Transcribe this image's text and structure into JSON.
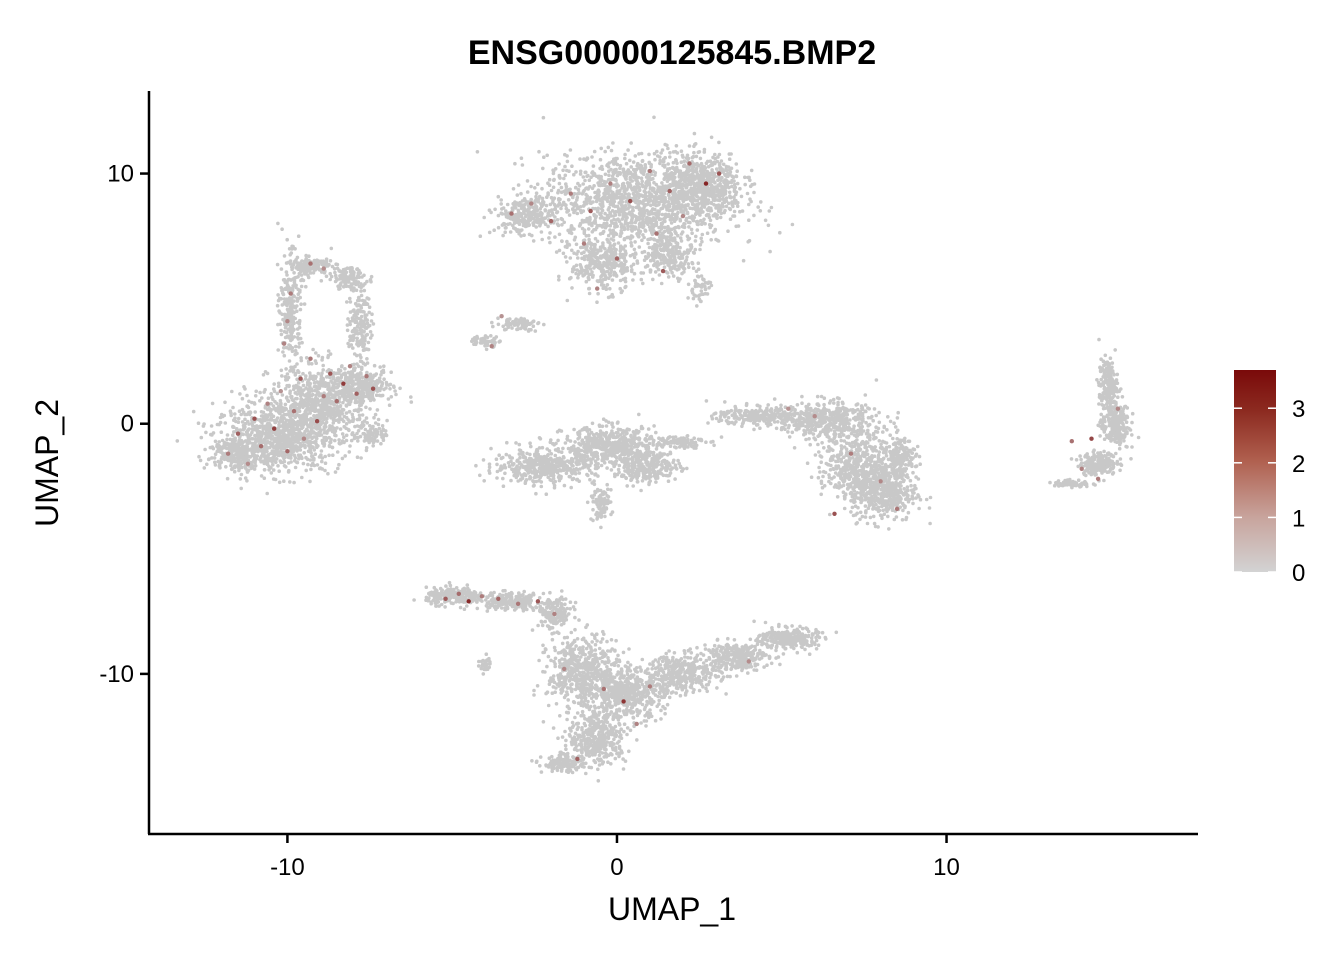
{
  "chart_data": {
    "type": "scatter",
    "title": "ENSG00000125845.BMP2",
    "xlabel": "UMAP_1",
    "ylabel": "UMAP_2",
    "xlim": [
      -14.2,
      17.6
    ],
    "ylim": [
      -16.4,
      13.3
    ],
    "x_ticks": [
      -10,
      0,
      10
    ],
    "y_ticks": [
      -10,
      0,
      10
    ],
    "x_tick_labels": [
      "-10",
      "0",
      "10"
    ],
    "y_tick_labels": [
      "-10",
      "0",
      "10"
    ],
    "grid": false,
    "legend": {
      "type": "colorbar",
      "placement": "right",
      "min": 0,
      "max": 3.7,
      "ticks": [
        0,
        1,
        2,
        3
      ],
      "tick_labels": [
        "0",
        "1",
        "2",
        "3"
      ],
      "low_color": "#d3d3d3",
      "high_color": "#7a0a0a"
    },
    "background_point_color": "#c8c8c8",
    "clusters": [
      {
        "id": "left-cluster",
        "expression_density": "high"
      },
      {
        "id": "upper-center-cluster",
        "expression_density": "medium"
      },
      {
        "id": "upper-small-branch",
        "expression_density": "low"
      },
      {
        "id": "middle-left-cluster",
        "expression_density": "none"
      },
      {
        "id": "middle-right-cluster",
        "expression_density": "low"
      },
      {
        "id": "right-crescent-cluster",
        "expression_density": "low"
      },
      {
        "id": "bottom-cluster",
        "expression_density": "low"
      }
    ],
    "expressing_points": [
      {
        "x": -11.8,
        "y": -1.2,
        "v": 1.6
      },
      {
        "x": -11.5,
        "y": -0.4,
        "v": 2.1
      },
      {
        "x": -11.2,
        "y": -1.6,
        "v": 1.3
      },
      {
        "x": -11.0,
        "y": 0.2,
        "v": 2.4
      },
      {
        "x": -10.8,
        "y": -0.9,
        "v": 1.9
      },
      {
        "x": -10.6,
        "y": 0.8,
        "v": 1.5
      },
      {
        "x": -10.4,
        "y": -0.2,
        "v": 2.7
      },
      {
        "x": -10.2,
        "y": 1.3,
        "v": 1.2
      },
      {
        "x": -10.0,
        "y": -1.1,
        "v": 2.0
      },
      {
        "x": -9.8,
        "y": 0.5,
        "v": 1.8
      },
      {
        "x": -9.6,
        "y": 1.8,
        "v": 2.2
      },
      {
        "x": -9.5,
        "y": -0.6,
        "v": 1.4
      },
      {
        "x": -9.3,
        "y": 2.6,
        "v": 1.7
      },
      {
        "x": -9.1,
        "y": 0.1,
        "v": 2.5
      },
      {
        "x": -8.9,
        "y": 1.1,
        "v": 1.6
      },
      {
        "x": -8.7,
        "y": 2.0,
        "v": 2.3
      },
      {
        "x": -8.5,
        "y": 0.9,
        "v": 1.9
      },
      {
        "x": -8.3,
        "y": 1.6,
        "v": 2.8
      },
      {
        "x": -8.1,
        "y": 2.3,
        "v": 1.5
      },
      {
        "x": -7.9,
        "y": 1.2,
        "v": 2.1
      },
      {
        "x": -7.6,
        "y": 1.9,
        "v": 1.7
      },
      {
        "x": -7.4,
        "y": 1.4,
        "v": 2.4
      },
      {
        "x": -9.9,
        "y": 5.2,
        "v": 1.6
      },
      {
        "x": -10.0,
        "y": 4.1,
        "v": 1.4
      },
      {
        "x": -9.3,
        "y": 6.4,
        "v": 1.8
      },
      {
        "x": -8.9,
        "y": 6.2,
        "v": 1.3
      },
      {
        "x": -10.1,
        "y": 3.2,
        "v": 1.5
      },
      {
        "x": -3.2,
        "y": 8.4,
        "v": 1.8
      },
      {
        "x": -2.6,
        "y": 8.8,
        "v": 1.4
      },
      {
        "x": -2.0,
        "y": 8.1,
        "v": 2.0
      },
      {
        "x": -1.4,
        "y": 9.2,
        "v": 1.6
      },
      {
        "x": -0.8,
        "y": 8.5,
        "v": 2.2
      },
      {
        "x": -0.2,
        "y": 9.6,
        "v": 1.5
      },
      {
        "x": 0.4,
        "y": 8.9,
        "v": 2.4
      },
      {
        "x": 1.0,
        "y": 10.1,
        "v": 1.7
      },
      {
        "x": 1.6,
        "y": 9.3,
        "v": 2.1
      },
      {
        "x": 2.2,
        "y": 10.4,
        "v": 1.9
      },
      {
        "x": 2.7,
        "y": 9.6,
        "v": 3.2
      },
      {
        "x": 3.1,
        "y": 10.0,
        "v": 2.3
      },
      {
        "x": -1.0,
        "y": 7.2,
        "v": 1.6
      },
      {
        "x": 0.0,
        "y": 6.6,
        "v": 2.0
      },
      {
        "x": 1.2,
        "y": 7.6,
        "v": 1.8
      },
      {
        "x": -0.6,
        "y": 5.4,
        "v": 1.5
      },
      {
        "x": 1.4,
        "y": 6.1,
        "v": 2.2
      },
      {
        "x": 2.0,
        "y": 8.3,
        "v": 1.4
      },
      {
        "x": -3.8,
        "y": 3.1,
        "v": 1.5
      },
      {
        "x": -3.5,
        "y": 4.3,
        "v": 1.2
      },
      {
        "x": 6.0,
        "y": 0.3,
        "v": 1.3
      },
      {
        "x": 7.1,
        "y": -1.2,
        "v": 1.6
      },
      {
        "x": 6.6,
        "y": -3.6,
        "v": 2.4
      },
      {
        "x": 8.0,
        "y": -2.3,
        "v": 1.4
      },
      {
        "x": 8.5,
        "y": -3.4,
        "v": 1.7
      },
      {
        "x": 5.2,
        "y": 0.6,
        "v": 1.2
      },
      {
        "x": 14.4,
        "y": -0.6,
        "v": 2.6
      },
      {
        "x": 14.1,
        "y": -1.8,
        "v": 1.5
      },
      {
        "x": 15.2,
        "y": 0.6,
        "v": 1.4
      },
      {
        "x": 14.6,
        "y": -2.2,
        "v": 1.6
      },
      {
        "x": 13.8,
        "y": -0.7,
        "v": 1.8
      },
      {
        "x": -5.2,
        "y": -7.0,
        "v": 2.2
      },
      {
        "x": -4.8,
        "y": -6.8,
        "v": 1.9
      },
      {
        "x": -4.5,
        "y": -7.1,
        "v": 3.1
      },
      {
        "x": -4.1,
        "y": -6.9,
        "v": 1.6
      },
      {
        "x": -3.6,
        "y": -7.0,
        "v": 2.0
      },
      {
        "x": -3.0,
        "y": -7.2,
        "v": 1.7
      },
      {
        "x": -2.4,
        "y": -7.1,
        "v": 2.3
      },
      {
        "x": -1.9,
        "y": -7.6,
        "v": 1.5
      },
      {
        "x": -1.6,
        "y": -9.8,
        "v": 1.4
      },
      {
        "x": -0.4,
        "y": -10.6,
        "v": 1.8
      },
      {
        "x": 0.2,
        "y": -11.1,
        "v": 2.9
      },
      {
        "x": 1.0,
        "y": -10.5,
        "v": 1.6
      },
      {
        "x": -1.2,
        "y": -13.4,
        "v": 2.1
      },
      {
        "x": 0.6,
        "y": -12.0,
        "v": 1.5
      },
      {
        "x": 4.0,
        "y": -9.5,
        "v": 1.3
      }
    ]
  }
}
